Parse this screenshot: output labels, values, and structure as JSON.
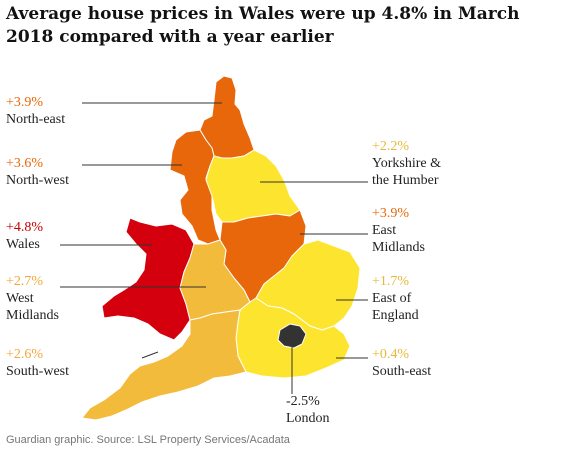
{
  "title": "Average house prices in Wales were up 4.8% in March 2018 compared with a year earlier",
  "source": "Guardian graphic. Source: LSL Property Services/Acadata",
  "colors": {
    "band_above_3_5": "#e8670b",
    "band_2_5_to_3_5": "#f3bb3c",
    "band_below_2_5": "#fde52f",
    "band_top": "#d4000d",
    "band_negative": "#333333",
    "pct_text_orange": "#e8670b",
    "pct_text_amber": "#f1a83a",
    "pct_text_yellow": "#e6b93a",
    "pct_text_red": "#c70000",
    "pct_text_dark": "#222222",
    "boundary": "#ffffff",
    "leader": "#333333"
  },
  "regions": [
    {
      "id": "north-east",
      "name": "North-east",
      "change": "+3.9%",
      "value": 3.9
    },
    {
      "id": "north-west",
      "name": "North-west",
      "change": "+3.6%",
      "value": 3.6
    },
    {
      "id": "yorkshire",
      "name": "Yorkshire & the Humber",
      "name_lines": [
        "Yorkshire &",
        "the Humber"
      ],
      "change": "+2.2%",
      "value": 2.2
    },
    {
      "id": "wales",
      "name": "Wales",
      "change": "+4.8%",
      "value": 4.8
    },
    {
      "id": "east-midlands",
      "name": "East Midlands",
      "name_lines": [
        "East",
        "Midlands"
      ],
      "change": "+3.9%",
      "value": 3.9
    },
    {
      "id": "west-midlands",
      "name": "West Midlands",
      "name_lines": [
        "West",
        "Midlands"
      ],
      "change": "+2.7%",
      "value": 2.7
    },
    {
      "id": "east-of-england",
      "name": "East of England",
      "name_lines": [
        "East of",
        "England"
      ],
      "change": "+1.7%",
      "value": 1.7
    },
    {
      "id": "south-west",
      "name": "South-west",
      "change": "+2.6%",
      "value": 2.6
    },
    {
      "id": "south-east",
      "name": "South-east",
      "change": "+0.4%",
      "value": 0.4
    },
    {
      "id": "london",
      "name": "London",
      "change": "-2.5%",
      "value": -2.5
    }
  ]
}
